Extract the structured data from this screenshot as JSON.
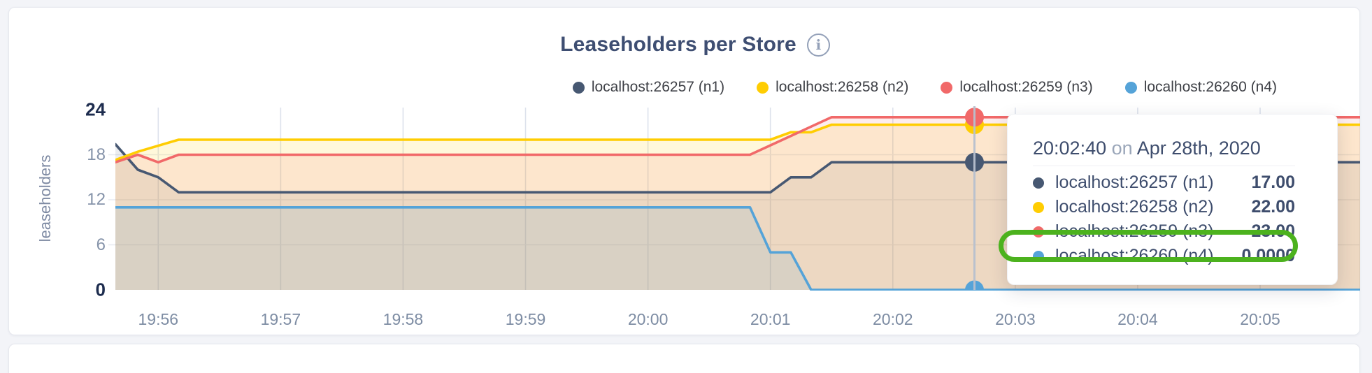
{
  "chart_data": {
    "type": "area",
    "title": "Leaseholders per Store",
    "ylabel": "leaseholders",
    "ylim": [
      0,
      24
    ],
    "y_ticks": [
      0,
      6,
      12,
      18,
      24
    ],
    "y_ticks_bold": [
      0,
      24
    ],
    "y_gridlines": [
      6,
      12,
      18
    ],
    "x_ticks": [
      "19:56",
      "19:57",
      "19:58",
      "19:59",
      "20:00",
      "20:01",
      "20:02",
      "20:03",
      "20:04",
      "20:05"
    ],
    "x_domain": [
      "19:55:39",
      "20:05:49"
    ],
    "grid": true,
    "legend_position": "top-right",
    "series": [
      {
        "name": "localhost:26257 (n1)",
        "color": "#475872",
        "fill_opacity": 0.11,
        "points": [
          [
            "19:55:39",
            19.4
          ],
          [
            "19:55:50",
            16
          ],
          [
            "19:56:00",
            15
          ],
          [
            "19:56:10",
            13
          ],
          [
            "20:01:00",
            13
          ],
          [
            "20:01:10",
            15
          ],
          [
            "20:01:20",
            15
          ],
          [
            "20:01:30",
            17
          ],
          [
            "20:05:49",
            17
          ]
        ]
      },
      {
        "name": "localhost:26258 (n2)",
        "color": "#ffcd02",
        "fill_opacity": 0.14,
        "points": [
          [
            "19:55:39",
            17.3
          ],
          [
            "19:55:50",
            18.4
          ],
          [
            "19:56:10",
            20
          ],
          [
            "20:01:00",
            20
          ],
          [
            "20:01:10",
            21
          ],
          [
            "20:01:20",
            21
          ],
          [
            "20:01:30",
            22
          ],
          [
            "20:05:49",
            22
          ]
        ]
      },
      {
        "name": "localhost:26259 (n3)",
        "color": "#f16969",
        "fill_opacity": 0.12,
        "points": [
          [
            "19:55:39",
            17
          ],
          [
            "19:55:50",
            18
          ],
          [
            "19:56:00",
            17
          ],
          [
            "19:56:10",
            18
          ],
          [
            "20:00:50",
            18
          ],
          [
            "20:01:30",
            23
          ],
          [
            "20:05:49",
            23
          ]
        ]
      },
      {
        "name": "localhost:26260 (n4)",
        "color": "#55a3d8",
        "fill_opacity": 0.13,
        "points": [
          [
            "19:55:39",
            11
          ],
          [
            "20:00:50",
            11
          ],
          [
            "20:01:00",
            5
          ],
          [
            "20:01:10",
            5
          ],
          [
            "20:01:20",
            0
          ],
          [
            "20:05:49",
            0
          ]
        ]
      }
    ],
    "hover": {
      "time": "20:02:40",
      "values": [
        17,
        22,
        23,
        0
      ],
      "crosshair_color": "#b7c0ce"
    }
  },
  "header": {
    "title": "Leaseholders per Store",
    "info_icon": "i"
  },
  "tooltip": {
    "time": "20:02:40",
    "on_word": "on",
    "date": "Apr 28th, 2020",
    "rows": [
      {
        "label": "localhost:26257 (n1)",
        "value": "17.00",
        "color": "#475872",
        "highlighted": false
      },
      {
        "label": "localhost:26258 (n2)",
        "value": "22.00",
        "color": "#ffcd02",
        "highlighted": false
      },
      {
        "label": "localhost:26259 (n3)",
        "value": "23.00",
        "color": "#f16969",
        "highlighted": false
      },
      {
        "label": "localhost:26260 (n4)",
        "value": "0.0000",
        "color": "#55a3d8",
        "highlighted": true
      }
    ],
    "highlight_color": "#4cb21e"
  }
}
